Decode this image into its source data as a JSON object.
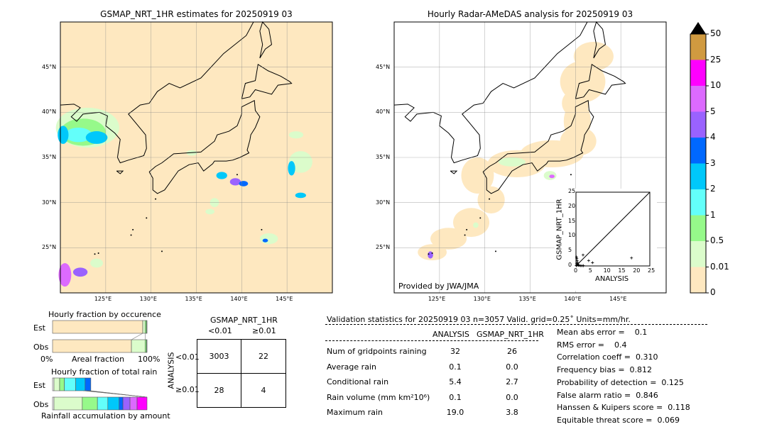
{
  "left_map": {
    "title": "GSMAP_NRT_1HR estimates for 20250919 03"
  },
  "right_map": {
    "title": "Hourly Radar-AMeDAS analysis for 20250919 03",
    "credit": "Provided by JWA/JMA"
  },
  "map_axes": {
    "lon_ticks": [
      "125°E",
      "130°E",
      "135°E",
      "140°E",
      "145°E"
    ],
    "lat_ticks": [
      "45°N",
      "40°N",
      "35°N",
      "30°N",
      "25°N"
    ],
    "lon_range": [
      120,
      150
    ],
    "lat_range": [
      20,
      50
    ]
  },
  "colorbar": {
    "labels": [
      "0",
      "0.01",
      "0.5",
      "1",
      "2",
      "3",
      "4",
      "5",
      "10",
      "25",
      "50"
    ],
    "colors": [
      "#fee8c0",
      "#dbfccb",
      "#96f98a",
      "#63fffa",
      "#00c8fa",
      "#0068fe",
      "#9a62fe",
      "#dc6afe",
      "#fe00fe",
      "#d09a40"
    ],
    "extend": "max"
  },
  "chart_data": [
    {
      "type": "scatter",
      "xlabel": "ANALYSIS",
      "ylabel": "GSMAP_NRT_1HR",
      "xlim": [
        0,
        25
      ],
      "ylim": [
        0,
        25
      ],
      "xticks": [
        "0",
        "5",
        "10",
        "15",
        "20",
        "25"
      ],
      "yticks": [
        "0",
        "5",
        "10",
        "15",
        "20",
        "25"
      ],
      "points": [
        [
          0.2,
          3.0
        ],
        [
          0.3,
          2.5
        ],
        [
          0.4,
          1.8
        ],
        [
          0.5,
          1.2
        ],
        [
          0.3,
          0.8
        ],
        [
          0.6,
          0.5
        ],
        [
          0.8,
          0.3
        ],
        [
          1.0,
          0.2
        ],
        [
          1.5,
          0.1
        ],
        [
          2.0,
          0.1
        ],
        [
          2.5,
          0.1
        ],
        [
          2.4,
          3.7
        ],
        [
          4.3,
          1.8
        ],
        [
          5.6,
          1.1
        ],
        [
          18.8,
          2.7
        ],
        [
          0.1,
          0.1
        ]
      ],
      "diagonal": true
    },
    {
      "type": "bar",
      "title": "Hourly fraction by occurence",
      "categories": [
        "Est",
        "Obs"
      ],
      "xlabel": "Areal fraction",
      "xtick_labels": [
        "0%",
        "100%"
      ],
      "series": [
        {
          "values_percent_est": [
            95.5,
            2.5,
            1.5,
            0.5
          ]
        },
        {
          "values_percent_obs": [
            83.5,
            14.5,
            1.5,
            0.5
          ]
        }
      ]
    },
    {
      "type": "bar",
      "title": "Hourly fraction of total rain",
      "xlabel": "Rainfall accumulation by amount",
      "categories": [
        "Est",
        "Obs"
      ],
      "est_segments_percent": [
        1.5,
        6,
        5,
        12,
        10,
        6
      ],
      "obs_segments_percent": [
        1.5,
        30,
        16,
        11,
        12,
        4,
        7.5,
        7.5,
        10.5
      ]
    }
  ],
  "contingency": {
    "title": "GSMAP_NRT_1HR",
    "ylabel": "ANALYSIS",
    "col_labels": [
      "<0.01",
      "≥0.01"
    ],
    "row_labels": [
      "<0.01",
      "≥0.01"
    ],
    "cells": [
      [
        "3003",
        "22"
      ],
      [
        "28",
        "4"
      ]
    ]
  },
  "stats": {
    "header": "Validation statistics for 20250919 03  n=3057 Valid. grid=0.25˚ Units=mm/hr.",
    "col_headers": [
      "ANALYSIS",
      "GSMAP_NRT_1HR"
    ],
    "rows": [
      {
        "label": "Num of gridpoints raining",
        "a": "32",
        "g": "26"
      },
      {
        "label": "Average rain",
        "a": "0.1",
        "g": "0.0"
      },
      {
        "label": "Conditional rain",
        "a": "5.4",
        "g": "2.7"
      },
      {
        "label": "Rain volume (mm km²10⁶)",
        "a": "0.1",
        "g": "0.0"
      },
      {
        "label": "Maximum rain",
        "a": "19.0",
        "g": "3.8"
      }
    ],
    "scores": [
      "Mean abs error =    0.1",
      "RMS error =    0.4",
      "Correlation coeff =  0.310",
      "Frequency bias =  0.812",
      "Probability of detection =  0.125",
      "False alarm ratio =  0.846",
      "Hanssen & Kuipers score =  0.118",
      "Equitable threat score =  0.069"
    ]
  }
}
